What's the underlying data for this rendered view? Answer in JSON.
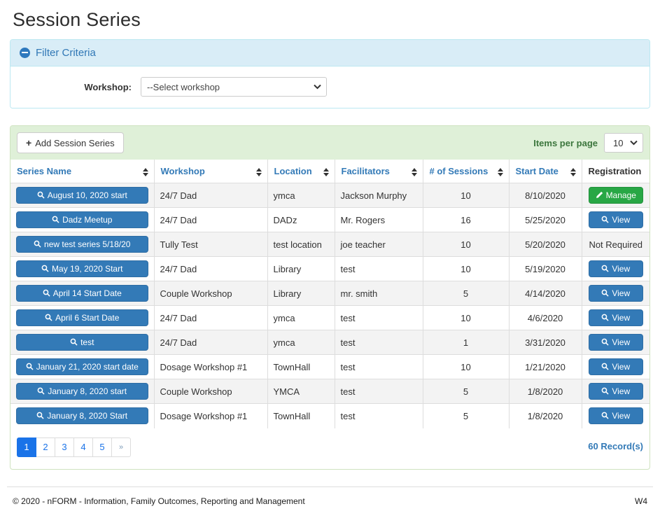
{
  "page": {
    "title": "Session Series"
  },
  "filter": {
    "title": "Filter Criteria",
    "workshop_label": "Workshop:",
    "workshop_placeholder": "--Select workshop"
  },
  "toolbar": {
    "add_button_label": "Add Session Series",
    "items_per_page_label": "Items per page",
    "items_per_page_value": "10"
  },
  "table": {
    "columns": [
      {
        "label": "Series Name",
        "sortable": true
      },
      {
        "label": "Workshop",
        "sortable": true
      },
      {
        "label": "Location",
        "sortable": true
      },
      {
        "label": "Facilitators",
        "sortable": true
      },
      {
        "label": "# of Sessions",
        "sortable": true
      },
      {
        "label": "Start Date",
        "sortable": true
      },
      {
        "label": "Registration",
        "sortable": false
      }
    ],
    "rows": [
      {
        "series_name": "August 10, 2020 start",
        "workshop": "24/7 Dad",
        "location": "ymca",
        "facilitators": "Jackson Murphy",
        "sessions": "10",
        "start_date": "8/10/2020",
        "registration": {
          "type": "manage",
          "label": "Manage"
        }
      },
      {
        "series_name": "Dadz Meetup",
        "workshop": "24/7 Dad",
        "location": "DADz",
        "facilitators": "Mr. Rogers",
        "sessions": "16",
        "start_date": "5/25/2020",
        "registration": {
          "type": "view",
          "label": "View"
        }
      },
      {
        "series_name": "new test series 5/18/20",
        "workshop": "Tully Test",
        "location": "test location",
        "facilitators": "joe teacher",
        "sessions": "10",
        "start_date": "5/20/2020",
        "registration": {
          "type": "text",
          "label": "Not Required"
        }
      },
      {
        "series_name": "May 19, 2020 Start",
        "workshop": "24/7 Dad",
        "location": "Library",
        "facilitators": "test",
        "sessions": "10",
        "start_date": "5/19/2020",
        "registration": {
          "type": "view",
          "label": "View"
        }
      },
      {
        "series_name": "April 14 Start Date",
        "workshop": "Couple Workshop",
        "location": "Library",
        "facilitators": "mr. smith",
        "sessions": "5",
        "start_date": "4/14/2020",
        "registration": {
          "type": "view",
          "label": "View"
        }
      },
      {
        "series_name": "April 6 Start Date",
        "workshop": "24/7 Dad",
        "location": "ymca",
        "facilitators": "test",
        "sessions": "10",
        "start_date": "4/6/2020",
        "registration": {
          "type": "view",
          "label": "View"
        }
      },
      {
        "series_name": "test",
        "workshop": "24/7 Dad",
        "location": "ymca",
        "facilitators": "test",
        "sessions": "1",
        "start_date": "3/31/2020",
        "registration": {
          "type": "view",
          "label": "View"
        }
      },
      {
        "series_name": "January 21, 2020 start date",
        "workshop": "Dosage Workshop #1",
        "location": "TownHall",
        "facilitators": "test",
        "sessions": "10",
        "start_date": "1/21/2020",
        "registration": {
          "type": "view",
          "label": "View"
        }
      },
      {
        "series_name": "January 8, 2020 start",
        "workshop": "Couple Workshop",
        "location": "YMCA",
        "facilitators": "test",
        "sessions": "5",
        "start_date": "1/8/2020",
        "registration": {
          "type": "view",
          "label": "View"
        }
      },
      {
        "series_name": "January 8, 2020 Start",
        "workshop": "Dosage Workshop #1",
        "location": "TownHall",
        "facilitators": "test",
        "sessions": "5",
        "start_date": "1/8/2020",
        "registration": {
          "type": "view",
          "label": "View"
        }
      }
    ]
  },
  "pagination": {
    "pages": [
      "1",
      "2",
      "3",
      "4",
      "5",
      "»"
    ],
    "active": "1",
    "record_count": "60 Record(s)"
  },
  "footer": {
    "copyright": "© 2020 - nFORM - Information, Family Outcomes, Reporting and Management",
    "version": "W4"
  },
  "colors": {
    "accent_blue": "#337ab7",
    "success_green": "#28a745",
    "panel_info_bg": "#d9edf7",
    "panel_success_bg": "#dff0d8",
    "pagination_active": "#1a73e8"
  }
}
